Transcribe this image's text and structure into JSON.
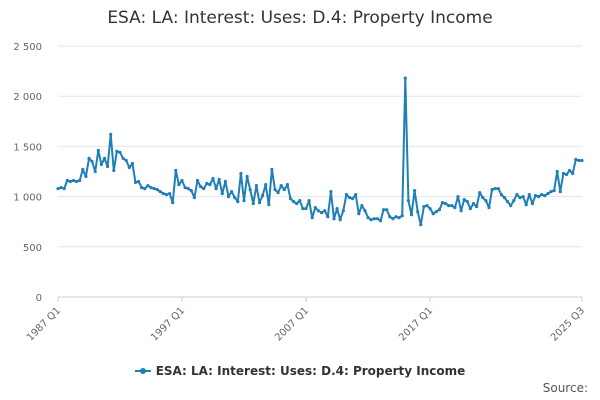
{
  "chart_data": {
    "type": "line",
    "title": "ESA: LA: Interest: Uses: D.4: Property Income",
    "xlabel": "",
    "ylabel": "",
    "ylim": [
      0,
      2500
    ],
    "yticks": [
      0,
      500,
      1000,
      1500,
      2000,
      2500
    ],
    "ytick_labels": [
      "0",
      "500",
      "1 000",
      "1 500",
      "2 000",
      "2 500"
    ],
    "xtick_labels": [
      "1987 Q1",
      "1997 Q1",
      "2007 Q1",
      "2017 Q1",
      "2025 Q3"
    ],
    "grid": true,
    "legend_position": "bottom",
    "series": [
      {
        "name": "ESA: LA: Interest: Uses: D.4: Property Income",
        "color": "#1f7fb6",
        "values": [
          1080,
          1090,
          1080,
          1160,
          1150,
          1160,
          1150,
          1160,
          1270,
          1200,
          1380,
          1350,
          1250,
          1460,
          1320,
          1380,
          1300,
          1620,
          1260,
          1450,
          1440,
          1380,
          1360,
          1290,
          1330,
          1140,
          1150,
          1090,
          1080,
          1110,
          1090,
          1080,
          1070,
          1050,
          1030,
          1020,
          1030,
          940,
          1260,
          1120,
          1160,
          1090,
          1080,
          1060,
          990,
          1160,
          1100,
          1080,
          1130,
          1120,
          1180,
          1080,
          1170,
          1030,
          1150,
          1000,
          1050,
          990,
          950,
          1230,
          960,
          1200,
          1070,
          930,
          1110,
          940,
          1010,
          1120,
          920,
          1270,
          1070,
          1040,
          1110,
          1070,
          1120,
          980,
          950,
          930,
          960,
          880,
          880,
          960,
          790,
          890,
          860,
          840,
          860,
          800,
          1050,
          780,
          880,
          770,
          860,
          1020,
          990,
          980,
          1020,
          830,
          910,
          860,
          790,
          770,
          780,
          780,
          760,
          870,
          870,
          800,
          780,
          800,
          790,
          810,
          2180,
          960,
          820,
          1060,
          850,
          720,
          900,
          910,
          880,
          830,
          850,
          870,
          940,
          930,
          910,
          910,
          890,
          1000,
          860,
          970,
          950,
          880,
          930,
          900,
          1040,
          990,
          960,
          890,
          1070,
          1080,
          1080,
          1020,
          990,
          950,
          910,
          960,
          1020,
          990,
          1000,
          920,
          1020,
          930,
          1010,
          1000,
          1020,
          1010,
          1030,
          1050,
          1060,
          1250,
          1050,
          1230,
          1220,
          1260,
          1230,
          1370,
          1360,
          1360
        ]
      }
    ]
  },
  "legend": {
    "label": "ESA: LA: Interest: Uses: D.4: Property Income"
  },
  "source": {
    "label": "Source:"
  }
}
